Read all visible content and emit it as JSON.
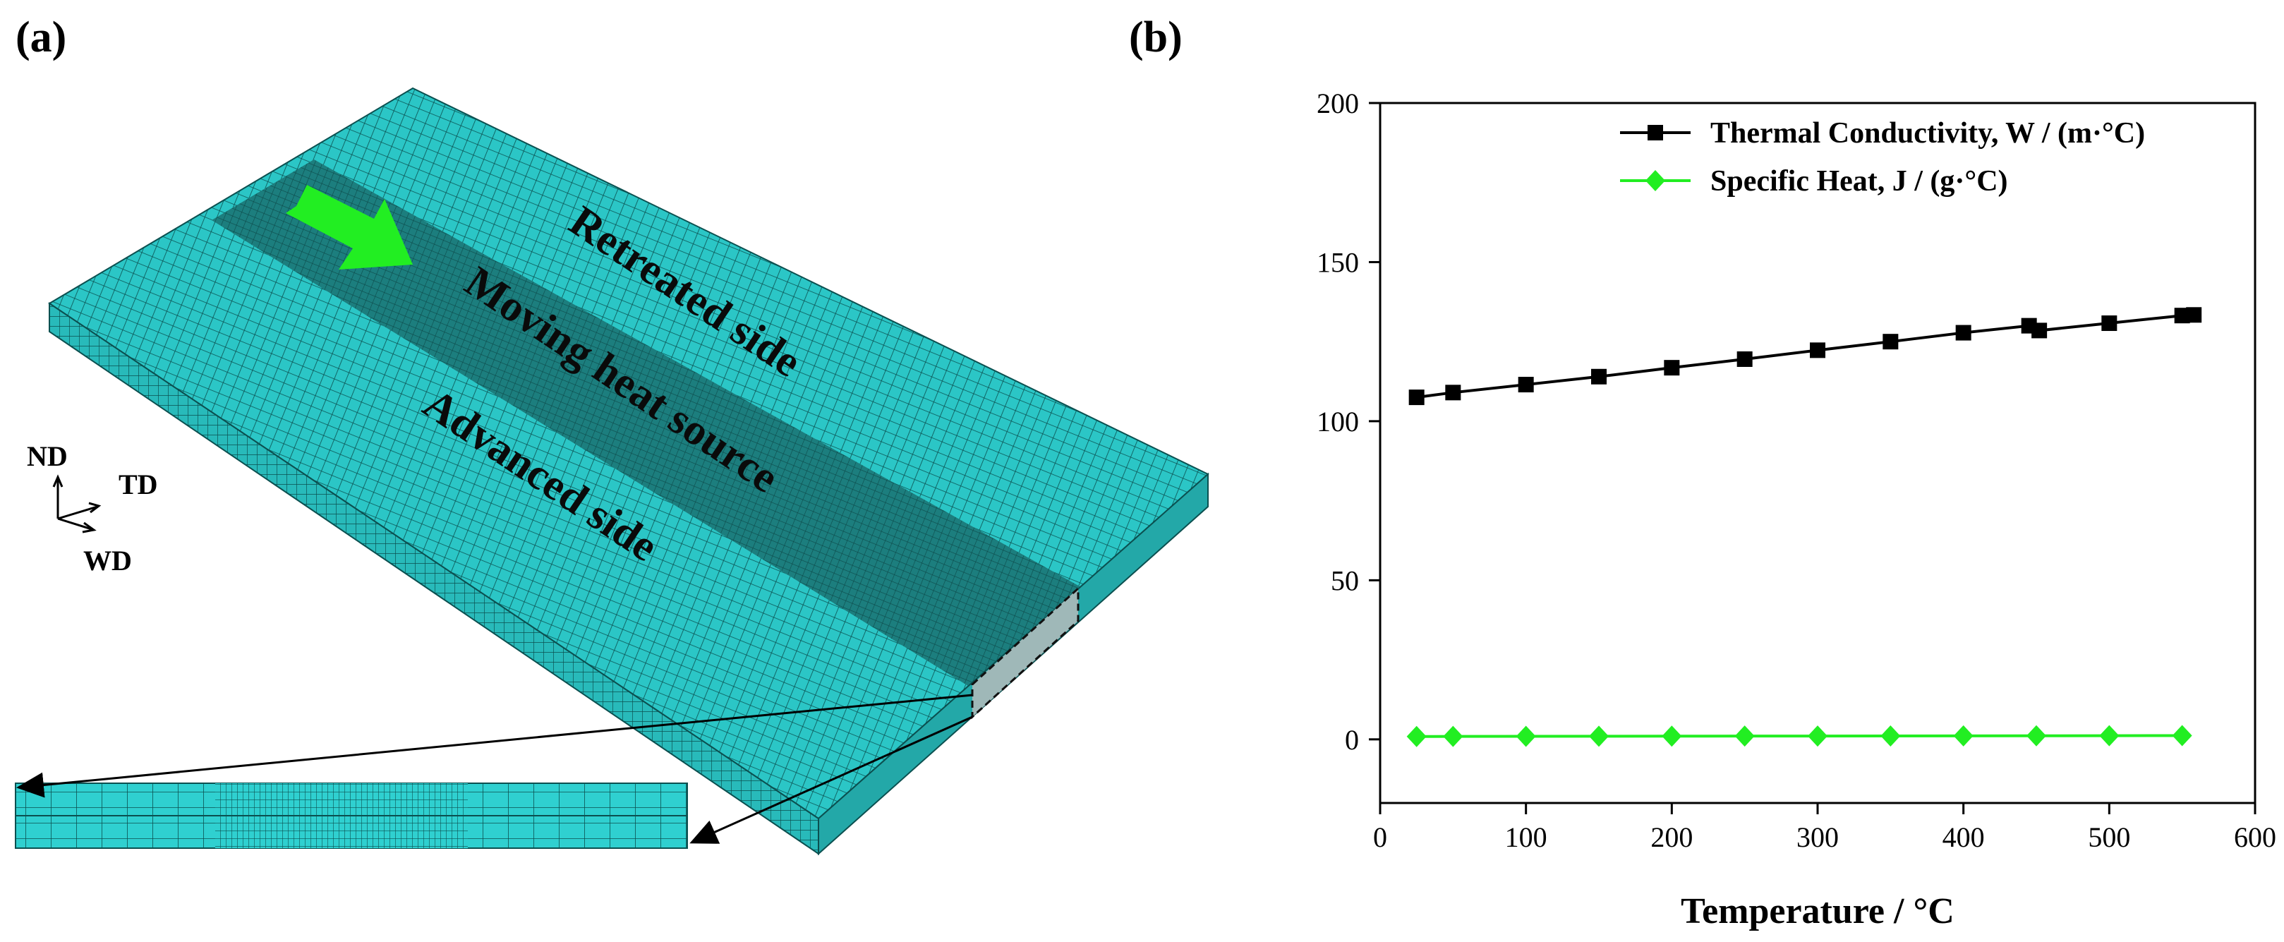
{
  "panels": {
    "a_label": "(a)",
    "b_label": "(b)"
  },
  "mesh_view": {
    "regions": {
      "retreated": "Retreated side",
      "moving": "Moving heat source",
      "advanced": "Advanced side"
    },
    "axes": {
      "nd": "ND",
      "td": "TD",
      "wd": "WD"
    },
    "colors": {
      "mesh": "#2bc6c6",
      "weld_zone": "#1c7e7e",
      "arrow": "#22ee22",
      "grid_line": "#0b5050"
    }
  },
  "chart_data": {
    "type": "line",
    "xlabel": "Temperature / °C",
    "ylabel": "",
    "xlim": [
      0,
      600
    ],
    "ylim": [
      -20,
      200
    ],
    "x_ticks": [
      0,
      100,
      200,
      300,
      400,
      500,
      600
    ],
    "y_ticks": [
      0,
      50,
      100,
      150,
      200
    ],
    "grid": false,
    "legend_position": "top-right",
    "series": [
      {
        "name": "Thermal Conductivity, W / (m·°C)",
        "color": "#000000",
        "marker": "square",
        "x": [
          25,
          50,
          100,
          150,
          200,
          250,
          300,
          350,
          400,
          445,
          452,
          500,
          550,
          558
        ],
        "y": [
          107.5,
          109,
          111.5,
          114,
          116.8,
          119.5,
          122.3,
          125,
          127.8,
          130,
          128.5,
          130.8,
          133.2,
          133.4
        ]
      },
      {
        "name": "Specific Heat, J / (g·°C)",
        "color": "#22ee22",
        "marker": "diamond",
        "x": [
          25,
          50,
          100,
          150,
          200,
          250,
          300,
          350,
          400,
          450,
          500,
          550
        ],
        "y": [
          0.9,
          0.92,
          0.95,
          0.98,
          1.0,
          1.03,
          1.05,
          1.07,
          1.1,
          1.12,
          1.15,
          1.18
        ]
      }
    ]
  }
}
